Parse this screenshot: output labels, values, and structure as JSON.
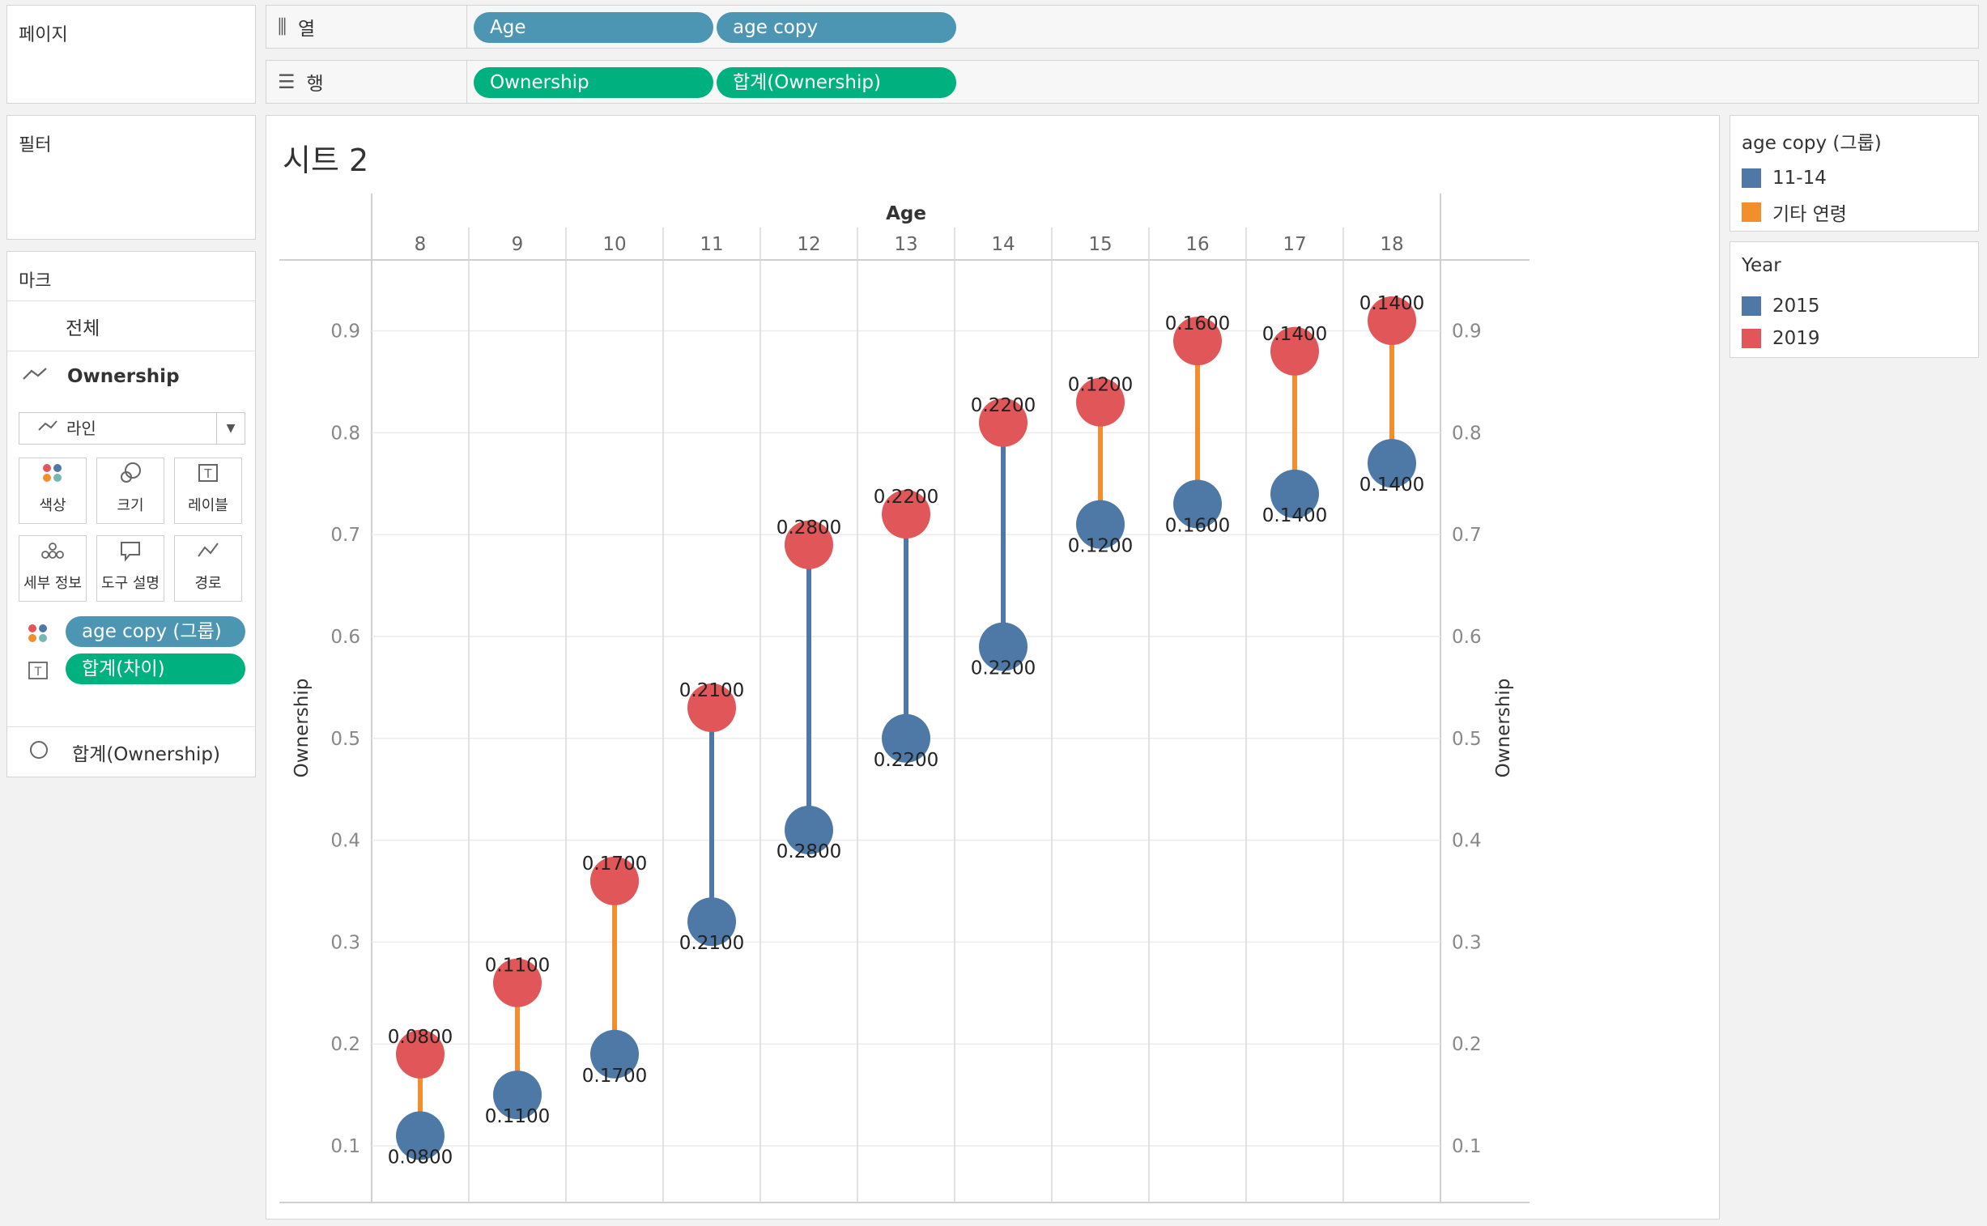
{
  "sidebar": {
    "pages_title": "페이지",
    "filters_title": "필터",
    "marks_title": "마크",
    "all_label": "전체",
    "ownership_label": "Ownership",
    "mark_type": "라인",
    "buttons": {
      "color": "색상",
      "size": "크기",
      "label": "레이블",
      "detail": "세부 정보",
      "tooltip": "도구 설명",
      "path": "경로"
    },
    "color_pill": "age copy (그룹)",
    "label_pill": "합계(차이)",
    "sum_ownership": "합계(Ownership)"
  },
  "shelves": {
    "columns_label": "열",
    "rows_label": "행",
    "column_pills": [
      "Age",
      "age copy"
    ],
    "row_pills": [
      "Ownership",
      "합계(Ownership)"
    ]
  },
  "sheet": {
    "title": "시트 2"
  },
  "legends": {
    "group": {
      "title": "age copy (그룹)",
      "items": [
        {
          "label": "11-14",
          "color": "#4e79a7"
        },
        {
          "label": "기타 연령",
          "color": "#f28e2b"
        }
      ]
    },
    "year": {
      "title": "Year",
      "items": [
        {
          "label": "2015",
          "color": "#4e79a7"
        },
        {
          "label": "2019",
          "color": "#e15759"
        }
      ]
    }
  },
  "chart_data": {
    "type": "scatter",
    "title": "",
    "xlabel": "Age",
    "ylabel": "Ownership",
    "y2label": "Ownership",
    "ylim": [
      0.045,
      0.95
    ],
    "yticks": [
      "0.1",
      "0.2",
      "0.3",
      "0.4",
      "0.5",
      "0.6",
      "0.7",
      "0.8",
      "0.9"
    ],
    "categories": [
      "8",
      "9",
      "10",
      "11",
      "12",
      "13",
      "14",
      "15",
      "16",
      "17",
      "18"
    ],
    "grid": true,
    "series": [
      {
        "name": "2015",
        "color": "#4e79a7",
        "values": [
          0.11,
          0.15,
          0.19,
          0.32,
          0.41,
          0.5,
          0.59,
          0.71,
          0.73,
          0.74,
          0.77
        ]
      },
      {
        "name": "2019",
        "color": "#e15759",
        "values": [
          0.19,
          0.26,
          0.36,
          0.53,
          0.69,
          0.72,
          0.81,
          0.83,
          0.89,
          0.88,
          0.91
        ]
      }
    ],
    "connector_colors": [
      "#f28e2b",
      "#f28e2b",
      "#f28e2b",
      "#4e79a7",
      "#4e79a7",
      "#4e79a7",
      "#4e79a7",
      "#f28e2b",
      "#f28e2b",
      "#f28e2b",
      "#f28e2b"
    ],
    "diff_labels": [
      "0.0800",
      "0.1100",
      "0.1700",
      "0.2100",
      "0.2800",
      "0.2200",
      "0.2200",
      "0.1200",
      "0.1600",
      "0.1400",
      "0.1400"
    ]
  }
}
